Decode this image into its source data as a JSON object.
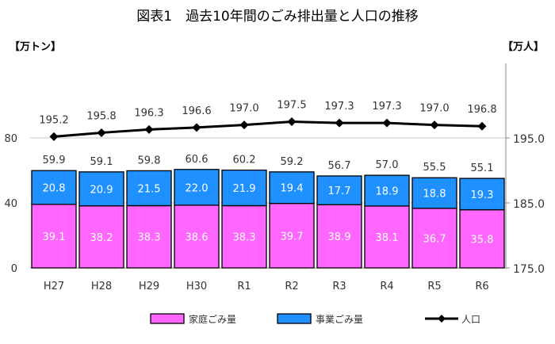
{
  "chart_data": {
    "type": "bar",
    "title": "図表1　過去10年間のごみ排出量と人口の推移",
    "left_axis_label": "【万トン】",
    "right_axis_label": "【万人】",
    "categories": [
      "H27",
      "H28",
      "H29",
      "H30",
      "R1",
      "R2",
      "R3",
      "R4",
      "R5",
      "R6"
    ],
    "stacked": true,
    "series": [
      {
        "name": "家庭ごみ量",
        "type": "bar",
        "axis": "left",
        "color": "#ff66ff",
        "values": [
          39.1,
          38.2,
          38.3,
          38.6,
          38.3,
          39.7,
          38.9,
          38.1,
          36.7,
          35.8
        ]
      },
      {
        "name": "事業ごみ量",
        "type": "bar",
        "axis": "left",
        "color": "#1e90ff",
        "values": [
          20.8,
          20.9,
          21.5,
          22.0,
          21.9,
          19.4,
          17.7,
          18.9,
          18.8,
          19.3
        ]
      },
      {
        "name": "人口",
        "type": "line",
        "axis": "right",
        "color": "#000000",
        "marker": "diamond",
        "values": [
          195.2,
          195.8,
          196.3,
          196.6,
          197.0,
          197.5,
          197.3,
          197.3,
          197.0,
          196.8
        ]
      }
    ],
    "totals": [
      "59.9",
      "59.1",
      "59.8",
      "60.6",
      "60.2",
      "59.2",
      "56.7",
      "57.0",
      "55.5",
      "55.1"
    ],
    "bar_labels": {
      "household": [
        "39.1",
        "38.2",
        "38.3",
        "38.6",
        "38.3",
        "39.7",
        "38.9",
        "38.1",
        "36.7",
        "35.8"
      ],
      "business": [
        "20.8",
        "20.9",
        "21.5",
        "22.0",
        "21.9",
        "19.4",
        "17.7",
        "18.9",
        "18.8",
        "19.3"
      ]
    },
    "population_labels": [
      "195.2",
      "195.8",
      "196.3",
      "196.6",
      "197.0",
      "197.5",
      "197.3",
      "197.3",
      "197.0",
      "196.8"
    ],
    "left_axis": {
      "range": [
        0,
        120
      ],
      "ticks": [
        0,
        40,
        80
      ],
      "tick_labels": [
        "0",
        "40",
        "80"
      ]
    },
    "right_axis": {
      "range": [
        175,
        205
      ],
      "ticks": [
        175,
        185,
        195
      ],
      "tick_labels": [
        "175.0",
        "185.0",
        "195.0"
      ]
    },
    "grid": true,
    "legend_position": "bottom"
  }
}
